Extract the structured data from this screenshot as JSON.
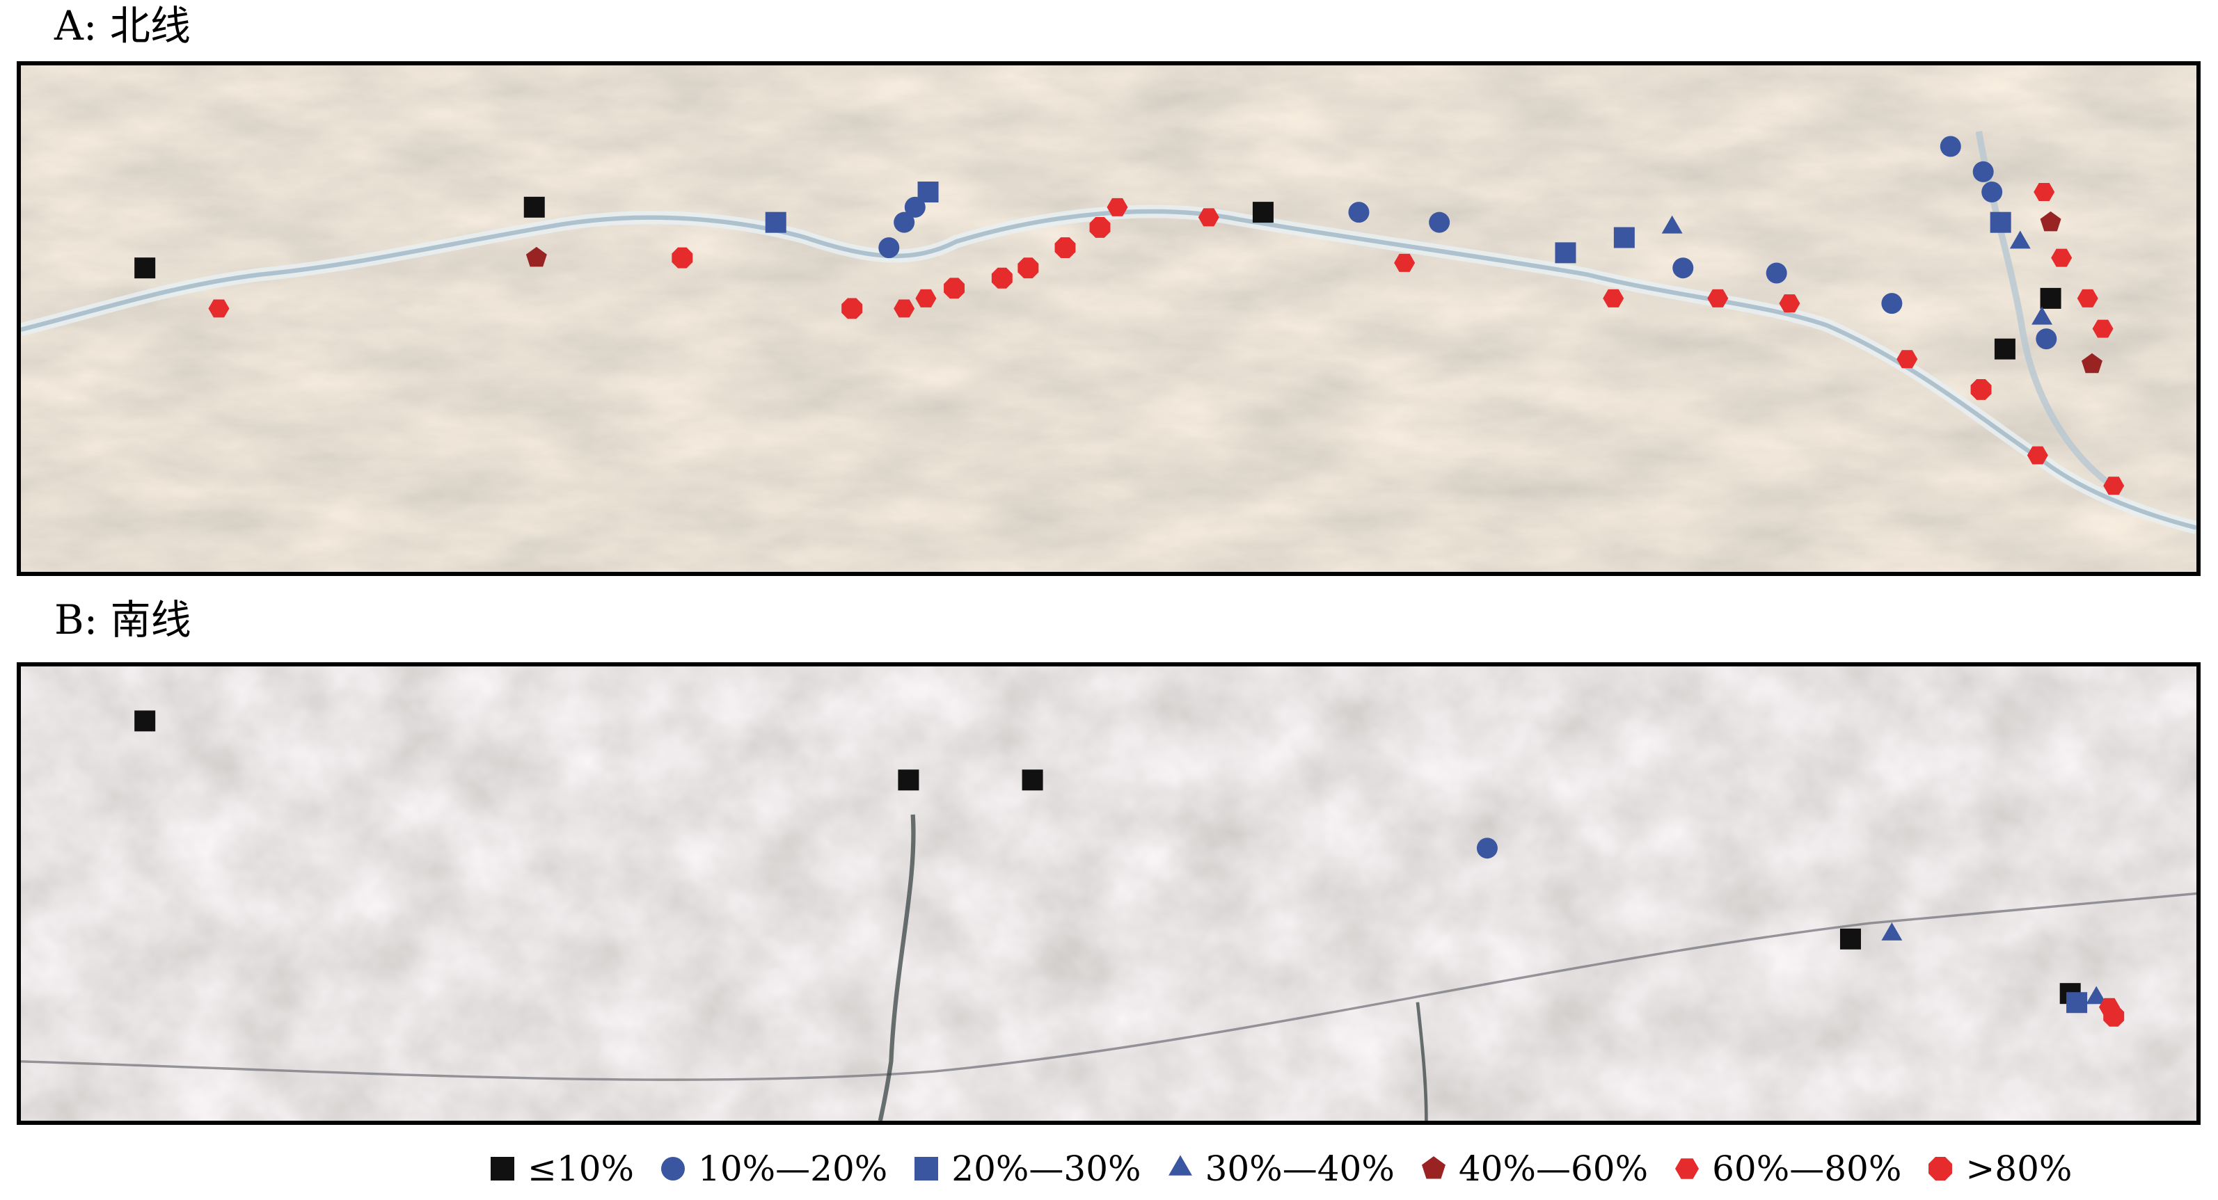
{
  "panels": [
    {
      "label": "A: 北线",
      "points": [
        {
          "x": 0.057,
          "y": 0.4,
          "c": 0
        },
        {
          "x": 0.091,
          "y": 0.48,
          "c": 5
        },
        {
          "x": 0.236,
          "y": 0.28,
          "c": 0
        },
        {
          "x": 0.237,
          "y": 0.38,
          "c": 4
        },
        {
          "x": 0.304,
          "y": 0.38,
          "c": 6
        },
        {
          "x": 0.347,
          "y": 0.31,
          "c": 2
        },
        {
          "x": 0.382,
          "y": 0.48,
          "c": 6
        },
        {
          "x": 0.399,
          "y": 0.36,
          "c": 1
        },
        {
          "x": 0.406,
          "y": 0.31,
          "c": 1
        },
        {
          "x": 0.411,
          "y": 0.28,
          "c": 1
        },
        {
          "x": 0.417,
          "y": 0.25,
          "c": 2
        },
        {
          "x": 0.406,
          "y": 0.48,
          "c": 5
        },
        {
          "x": 0.416,
          "y": 0.46,
          "c": 5
        },
        {
          "x": 0.429,
          "y": 0.44,
          "c": 6
        },
        {
          "x": 0.451,
          "y": 0.42,
          "c": 6
        },
        {
          "x": 0.463,
          "y": 0.4,
          "c": 6
        },
        {
          "x": 0.48,
          "y": 0.36,
          "c": 6
        },
        {
          "x": 0.496,
          "y": 0.32,
          "c": 6
        },
        {
          "x": 0.504,
          "y": 0.28,
          "c": 5
        },
        {
          "x": 0.546,
          "y": 0.3,
          "c": 5
        },
        {
          "x": 0.571,
          "y": 0.29,
          "c": 0
        },
        {
          "x": 0.615,
          "y": 0.29,
          "c": 1
        },
        {
          "x": 0.636,
          "y": 0.39,
          "c": 5
        },
        {
          "x": 0.652,
          "y": 0.31,
          "c": 1
        },
        {
          "x": 0.71,
          "y": 0.37,
          "c": 2
        },
        {
          "x": 0.732,
          "y": 0.46,
          "c": 5
        },
        {
          "x": 0.737,
          "y": 0.34,
          "c": 2
        },
        {
          "x": 0.759,
          "y": 0.32,
          "c": 3
        },
        {
          "x": 0.764,
          "y": 0.4,
          "c": 1
        },
        {
          "x": 0.78,
          "y": 0.46,
          "c": 5
        },
        {
          "x": 0.807,
          "y": 0.41,
          "c": 1
        },
        {
          "x": 0.813,
          "y": 0.47,
          "c": 5
        },
        {
          "x": 0.86,
          "y": 0.47,
          "c": 1
        },
        {
          "x": 0.867,
          "y": 0.58,
          "c": 5
        },
        {
          "x": 0.887,
          "y": 0.16,
          "c": 1
        },
        {
          "x": 0.902,
          "y": 0.21,
          "c": 1
        },
        {
          "x": 0.906,
          "y": 0.25,
          "c": 1
        },
        {
          "x": 0.91,
          "y": 0.31,
          "c": 2
        },
        {
          "x": 0.912,
          "y": 0.56,
          "c": 0
        },
        {
          "x": 0.901,
          "y": 0.64,
          "c": 6
        },
        {
          "x": 0.919,
          "y": 0.35,
          "c": 3
        },
        {
          "x": 0.93,
          "y": 0.25,
          "c": 5
        },
        {
          "x": 0.933,
          "y": 0.31,
          "c": 4
        },
        {
          "x": 0.938,
          "y": 0.38,
          "c": 5
        },
        {
          "x": 0.933,
          "y": 0.46,
          "c": 0
        },
        {
          "x": 0.929,
          "y": 0.5,
          "c": 3
        },
        {
          "x": 0.931,
          "y": 0.54,
          "c": 1
        },
        {
          "x": 0.95,
          "y": 0.46,
          "c": 5
        },
        {
          "x": 0.957,
          "y": 0.52,
          "c": 5
        },
        {
          "x": 0.952,
          "y": 0.59,
          "c": 4
        },
        {
          "x": 0.927,
          "y": 0.77,
          "c": 5
        },
        {
          "x": 0.962,
          "y": 0.83,
          "c": 5
        }
      ]
    },
    {
      "label": "B: 南线",
      "points": [
        {
          "x": 0.057,
          "y": 0.12,
          "c": 0
        },
        {
          "x": 0.408,
          "y": 0.25,
          "c": 0
        },
        {
          "x": 0.465,
          "y": 0.25,
          "c": 0
        },
        {
          "x": 0.674,
          "y": 0.4,
          "c": 1
        },
        {
          "x": 0.841,
          "y": 0.6,
          "c": 0
        },
        {
          "x": 0.86,
          "y": 0.59,
          "c": 3
        },
        {
          "x": 0.942,
          "y": 0.72,
          "c": 0
        },
        {
          "x": 0.945,
          "y": 0.74,
          "c": 2
        },
        {
          "x": 0.954,
          "y": 0.73,
          "c": 3
        },
        {
          "x": 0.96,
          "y": 0.75,
          "c": 5
        },
        {
          "x": 0.962,
          "y": 0.77,
          "c": 6
        }
      ]
    }
  ],
  "legend": [
    {
      "label": "≤10%",
      "shape": "square",
      "color": "#111111"
    },
    {
      "label": "10%—20%",
      "shape": "circle",
      "color": "#3a56a0"
    },
    {
      "label": "20%—30%",
      "shape": "square",
      "color": "#3a56a0"
    },
    {
      "label": "30%—40%",
      "shape": "triangle",
      "color": "#3a56a0"
    },
    {
      "label": "40%—60%",
      "shape": "pentagon",
      "color": "#992222"
    },
    {
      "label": "60%—80%",
      "shape": "hexagon",
      "color": "#e52b2b"
    },
    {
      "label": ">80%",
      "shape": "octagon",
      "color": "#e52b2b"
    }
  ]
}
